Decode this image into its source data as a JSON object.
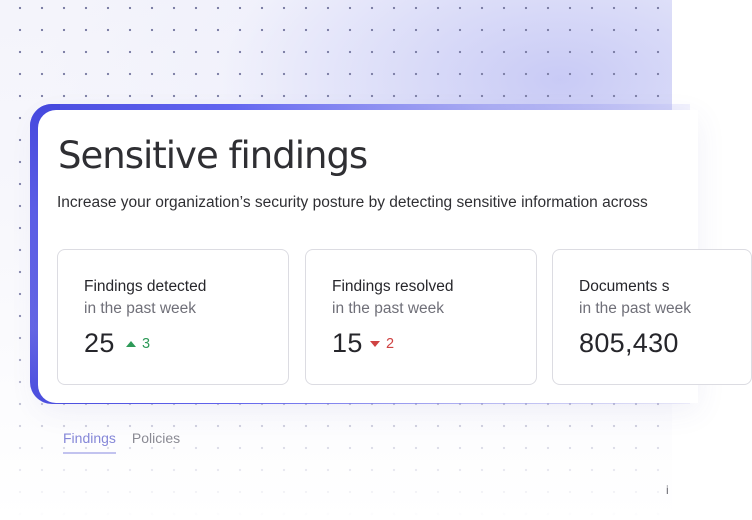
{
  "header": {
    "title": "Sensitive findings",
    "subtitle": "Increase your organization’s security posture by detecting sensitive information across"
  },
  "stats": [
    {
      "title": "Findings detected",
      "period": "in the past week",
      "value": "25",
      "delta": "3",
      "direction": "up",
      "color": "#2e9a58"
    },
    {
      "title": "Findings resolved",
      "period": "in the past week",
      "value": "15",
      "delta": "2",
      "direction": "down",
      "color": "#cf4242"
    },
    {
      "title": "Documents s",
      "period": "in the past week",
      "value": "805,430"
    }
  ],
  "tabs": [
    {
      "label": "Findings",
      "active": true
    },
    {
      "label": "Policies",
      "active": false
    }
  ],
  "edge_text": "i",
  "colors": {
    "accent": "#6366f1",
    "tab_active": "#8587d8",
    "text_primary": "#26262b",
    "text_secondary": "#6f6f78"
  }
}
